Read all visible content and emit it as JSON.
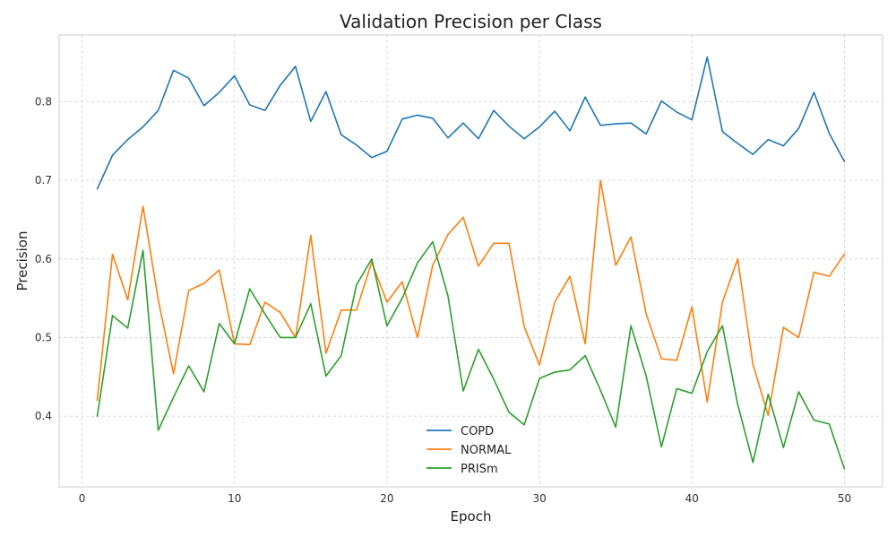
{
  "chart_data": {
    "type": "line",
    "title": "Validation Precision per Class",
    "xlabel": "Epoch",
    "ylabel": "Precision",
    "xlim": [
      -1.5,
      52.5
    ],
    "ylim": [
      0.31,
      0.885
    ],
    "xticks": [
      0,
      10,
      20,
      30,
      40,
      50
    ],
    "yticks": [
      0.4,
      0.5,
      0.6,
      0.7,
      0.8
    ],
    "grid": true,
    "legend_position": "bottom-center",
    "x": [
      1,
      2,
      3,
      4,
      5,
      6,
      7,
      8,
      9,
      10,
      11,
      12,
      13,
      14,
      15,
      16,
      17,
      18,
      19,
      20,
      21,
      22,
      23,
      24,
      25,
      26,
      27,
      28,
      29,
      30,
      31,
      32,
      33,
      34,
      35,
      36,
      37,
      38,
      39,
      40,
      41,
      42,
      43,
      44,
      45,
      46,
      47,
      48,
      49,
      50
    ],
    "series": [
      {
        "name": "COPD",
        "color": "#1f77b4",
        "values": [
          0.689,
          0.732,
          0.752,
          0.768,
          0.789,
          0.84,
          0.83,
          0.795,
          0.812,
          0.833,
          0.796,
          0.789,
          0.821,
          0.845,
          0.775,
          0.813,
          0.758,
          0.745,
          0.729,
          0.737,
          0.778,
          0.783,
          0.779,
          0.754,
          0.773,
          0.753,
          0.789,
          0.769,
          0.753,
          0.768,
          0.788,
          0.763,
          0.806,
          0.77,
          0.772,
          0.773,
          0.759,
          0.801,
          0.787,
          0.777,
          0.857,
          0.762,
          0.747,
          0.733,
          0.752,
          0.744,
          0.766,
          0.812,
          0.76,
          0.724
        ]
      },
      {
        "name": "NORMAL",
        "color": "#ff7f0e",
        "values": [
          0.42,
          0.606,
          0.548,
          0.667,
          0.548,
          0.454,
          0.56,
          0.569,
          0.586,
          0.492,
          0.491,
          0.545,
          0.532,
          0.5,
          0.63,
          0.48,
          0.535,
          0.535,
          0.596,
          0.545,
          0.571,
          0.5,
          0.592,
          0.631,
          0.653,
          0.591,
          0.62,
          0.62,
          0.514,
          0.465,
          0.545,
          0.578,
          0.492,
          0.7,
          0.592,
          0.628,
          0.53,
          0.473,
          0.471,
          0.539,
          0.418,
          0.545,
          0.6,
          0.466,
          0.401,
          0.513,
          0.5,
          0.583,
          0.578,
          0.606
        ]
      },
      {
        "name": "PRISm",
        "color": "#2ca02c",
        "values": [
          0.4,
          0.528,
          0.512,
          0.611,
          0.382,
          0.424,
          0.464,
          0.431,
          0.518,
          0.492,
          0.562,
          0.53,
          0.5,
          0.5,
          0.543,
          0.451,
          0.477,
          0.567,
          0.6,
          0.515,
          0.55,
          0.595,
          0.622,
          0.553,
          0.432,
          0.485,
          0.447,
          0.405,
          0.389,
          0.448,
          0.456,
          0.459,
          0.477,
          0.433,
          0.386,
          0.515,
          0.451,
          0.361,
          0.435,
          0.429,
          0.482,
          0.515,
          0.415,
          0.341,
          0.428,
          0.36,
          0.431,
          0.395,
          0.39,
          0.333
        ]
      }
    ]
  }
}
